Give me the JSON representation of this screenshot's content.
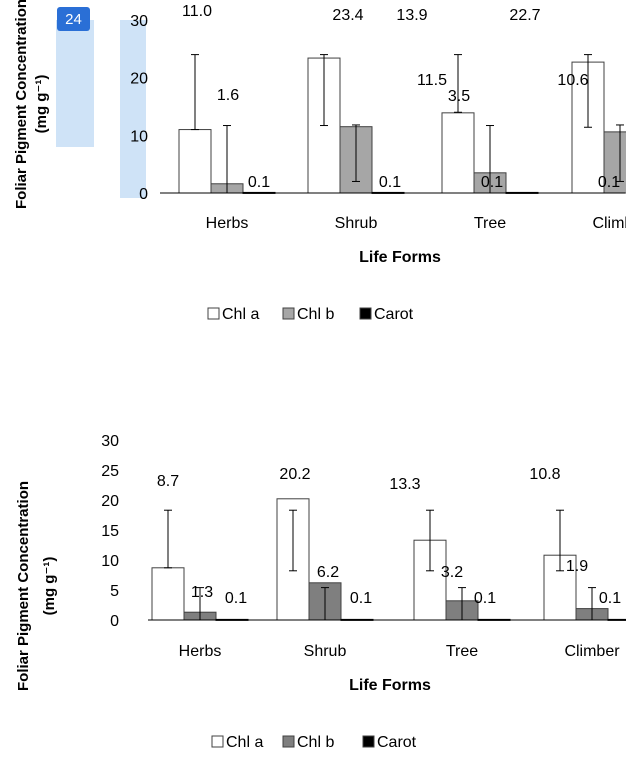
{
  "badge": {
    "text": "24",
    "color": "#2a6fd6"
  },
  "colors": {
    "chl_a": "#ffffff",
    "chl_b": "#a6a6a6",
    "chl_b_dark": "#7f7f7f",
    "carot": "#000000",
    "highlight": "#cfe3f7"
  },
  "chart_data": [
    {
      "type": "bar",
      "title": "",
      "xlabel": "Life Forms",
      "ylabel": "Foliar Pigment Concentration",
      "yunit": "(mg g⁻¹)",
      "ylim": [
        0,
        30
      ],
      "yticks": [
        "0",
        "10",
        "20",
        "30"
      ],
      "grid": false,
      "legend": "bottom",
      "categories": [
        "Herbs",
        "Shrub",
        "Tree",
        "Climber"
      ],
      "series": [
        {
          "name": "Chl a",
          "values": [
            11.0,
            23.4,
            13.9,
            22.7
          ],
          "labels": [
            "11.0",
            "23.4",
            "13.9",
            "22.7"
          ],
          "err_low": [
            11.0,
            11.7,
            14.0,
            11.4
          ],
          "err_high": [
            24.0,
            24.0,
            24.0,
            24.0
          ]
        },
        {
          "name": "Chl b",
          "values": [
            1.6,
            11.5,
            3.5,
            10.6
          ],
          "labels": [
            "1.6",
            "11.5",
            "3.5",
            "10.6"
          ],
          "err_low": [
            0.0,
            2.0,
            0.0,
            2.0
          ],
          "err_high": [
            11.7,
            11.8,
            11.7,
            11.8
          ]
        },
        {
          "name": "Carot",
          "values": [
            0.1,
            0.1,
            0.1,
            0.1
          ],
          "labels": [
            "0.1",
            "0.1",
            "0.1",
            "0.1"
          ]
        }
      ]
    },
    {
      "type": "bar",
      "title": "",
      "xlabel": "Life Forms",
      "ylabel": "Foliar Pigment Concentration",
      "yunit": "(mg g⁻¹)",
      "ylim": [
        0,
        30
      ],
      "yticks": [
        "0",
        "5",
        "10",
        "15",
        "20",
        "25",
        "30"
      ],
      "grid": false,
      "legend": "bottom",
      "categories": [
        "Herbs",
        "Shrub",
        "Tree",
        "Climber"
      ],
      "series": [
        {
          "name": "Chl a",
          "values": [
            8.7,
            20.2,
            13.3,
            10.8
          ],
          "labels": [
            "8.7",
            "20.2",
            "13.3",
            "10.8"
          ],
          "err_low": [
            8.7,
            8.2,
            8.2,
            8.2
          ],
          "err_high": [
            18.3,
            18.3,
            18.3,
            18.3
          ]
        },
        {
          "name": "Chl b",
          "values": [
            1.3,
            6.2,
            3.2,
            1.9
          ],
          "labels": [
            "1.3",
            "6.2",
            "3.2",
            "1.9"
          ],
          "err_low": [
            0.0,
            0.0,
            0.0,
            0.0
          ],
          "err_high": [
            5.4,
            5.4,
            5.4,
            5.4
          ]
        },
        {
          "name": "Carot",
          "values": [
            0.1,
            0.1,
            0.1,
            0.1
          ],
          "labels": [
            "0.1",
            "0.1",
            "0.1",
            "0.1"
          ]
        }
      ]
    }
  ]
}
